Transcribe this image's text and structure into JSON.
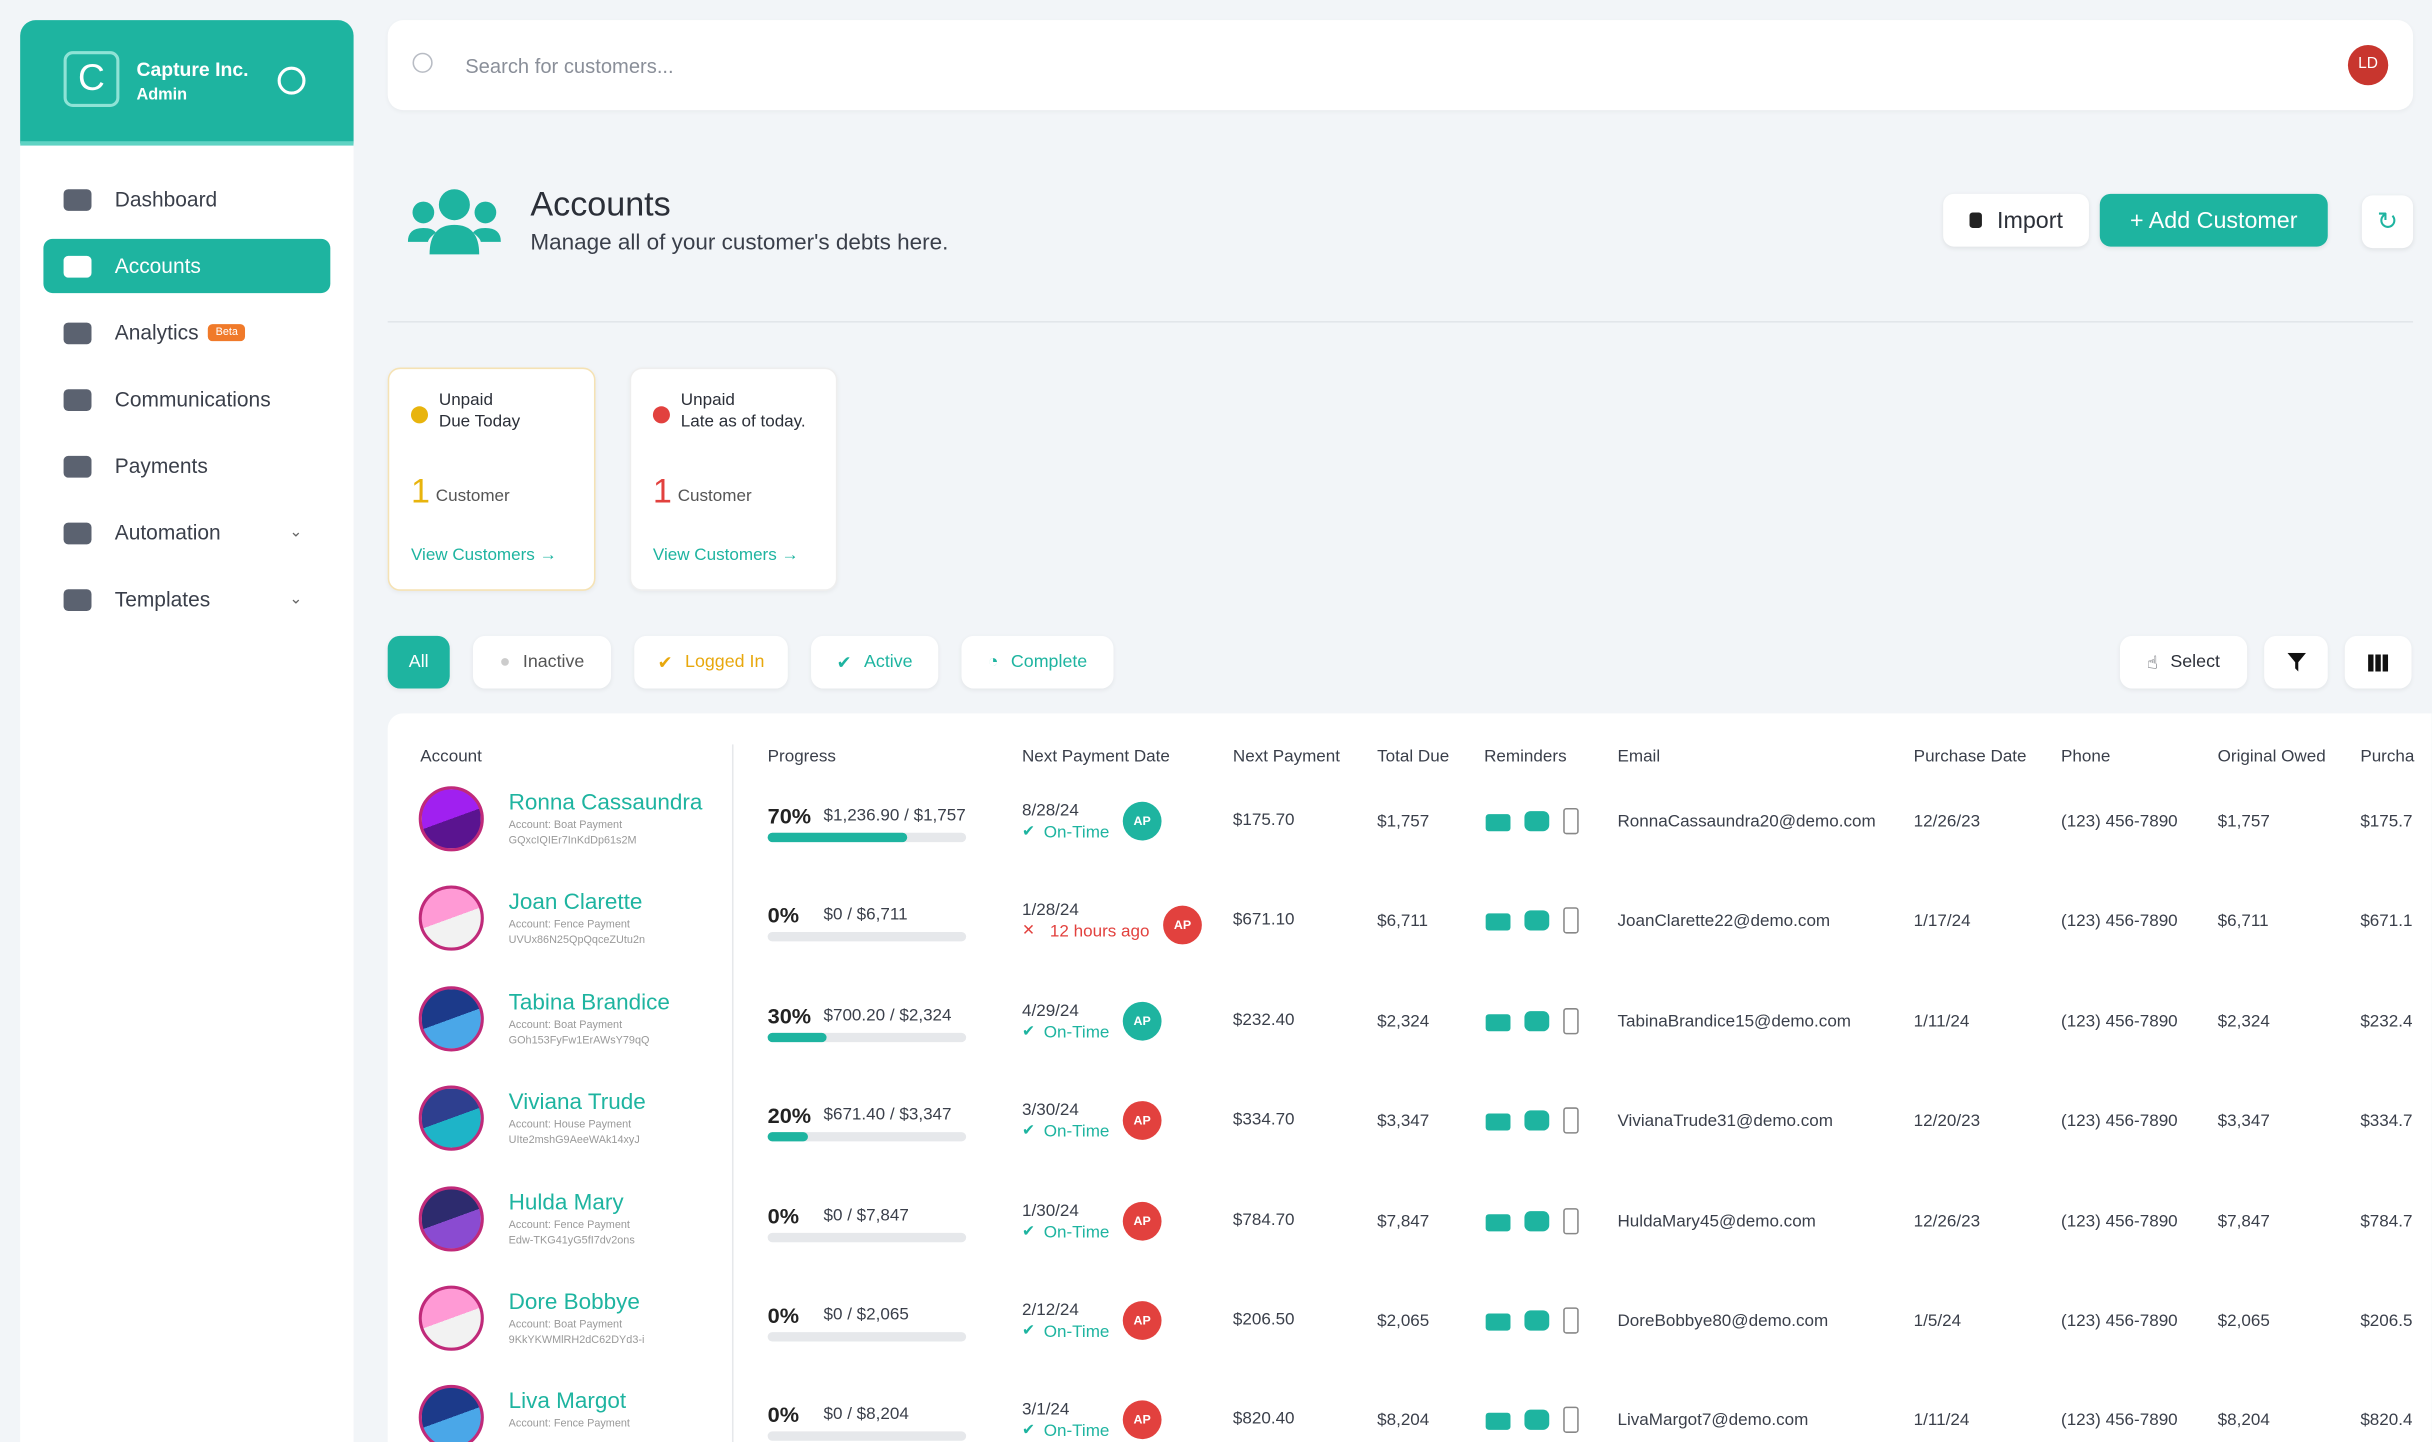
{
  "sidebar": {
    "brand": "Capture Inc.",
    "role": "Admin",
    "nav": [
      "Dashboard",
      "Accounts",
      "Analytics",
      "Communications",
      "Payments",
      "Automation",
      "Templates"
    ],
    "beta": "Beta"
  },
  "search": {
    "placeholder": "Search for customers...",
    "avatar": "LD"
  },
  "header": {
    "title": "Accounts",
    "subtitle": "Manage all of your customer's debts here.",
    "import": "Import",
    "add": "+ Add Customer"
  },
  "cards": [
    {
      "status": "Unpaid",
      "detail": "Due Today",
      "count": 1,
      "unit": "Customer",
      "link": "View Customers →"
    },
    {
      "status": "Unpaid",
      "detail": "Late as of today.",
      "count": 1,
      "unit": "Customer",
      "link": "View Customers →"
    }
  ],
  "filters": [
    "All",
    "Inactive",
    "Logged In",
    "Active",
    "Complete"
  ],
  "tools": {
    "select": "Select"
  },
  "table": {
    "columns": [
      "Account",
      "Progress",
      "Next Payment Date",
      "Next Payment",
      "Total Due",
      "Reminders",
      "Email",
      "Purchase Date",
      "Phone",
      "Original Owed",
      "Purcha"
    ],
    "rows": [
      {
        "name": "Ronna Cassaundra",
        "account": "Account: Boat Payment",
        "id": "GQxcIQIEr7InKdDp61s2M",
        "progress": {
          "value": 70,
          "label": "70%"
        },
        "paid": "$1,236.90 / $1,757",
        "next_date": "8/28/24",
        "status": "On-Time",
        "late": false,
        "agent": "AP",
        "agent_color": "#1eb4a0",
        "next_payment": "$175.70",
        "total_due": "$1,757",
        "email": "RonnaCassaundra20@demo.com",
        "purchase_date": "12/26/23",
        "phone": "(123) 456-7890",
        "original_owed": "$1,757",
        "purchase": "$175.7"
      },
      {
        "name": "Joan Clarette",
        "account": "Account: Fence Payment",
        "id": "UVUx86N25QpQqceZUtu2n",
        "progress": {
          "value": 0,
          "label": "0%"
        },
        "paid": "$0 / $6,711",
        "next_date": "1/28/24",
        "status": "12 hours ago",
        "late": true,
        "agent": "AP",
        "agent_color": "#e2413e",
        "next_payment": "$671.10",
        "total_due": "$6,711",
        "email": "JoanClarette22@demo.com",
        "purchase_date": "1/17/24",
        "phone": "(123) 456-7890",
        "original_owed": "$6,711",
        "purchase": "$671.1"
      },
      {
        "name": "Tabina Brandice",
        "account": "Account: Boat Payment",
        "id": "GOh153FyFw1ErAWsY79qQ",
        "progress": {
          "value": 30,
          "label": "30%"
        },
        "paid": "$700.20 / $2,324",
        "next_date": "4/29/24",
        "status": "On-Time",
        "late": false,
        "agent": "AP",
        "agent_color": "#1eb4a0",
        "next_payment": "$232.40",
        "total_due": "$2,324",
        "email": "TabinaBrandice15@demo.com",
        "purchase_date": "1/11/24",
        "phone": "(123) 456-7890",
        "original_owed": "$2,324",
        "purchase": "$232.4"
      },
      {
        "name": "Viviana Trude",
        "account": "Account: House Payment",
        "id": "UIte2mshG9AeeWAk14xyJ",
        "progress": {
          "value": 20,
          "label": "20%"
        },
        "paid": "$671.40 / $3,347",
        "next_date": "3/30/24",
        "status": "On-Time",
        "late": false,
        "agent": "AP",
        "agent_color": "#e2413e",
        "next_payment": "$334.70",
        "total_due": "$3,347",
        "email": "VivianaTrude31@demo.com",
        "purchase_date": "12/20/23",
        "phone": "(123) 456-7890",
        "original_owed": "$3,347",
        "purchase": "$334.7"
      },
      {
        "name": "Hulda Mary",
        "account": "Account: Fence Payment",
        "id": "Edw-TKG41yG5fI7dv2ons",
        "progress": {
          "value": 0,
          "label": "0%"
        },
        "paid": "$0 / $7,847",
        "next_date": "1/30/24",
        "status": "On-Time",
        "late": false,
        "agent": "AP",
        "agent_color": "#e2413e",
        "next_payment": "$784.70",
        "total_due": "$7,847",
        "email": "HuldaMary45@demo.com",
        "purchase_date": "12/26/23",
        "phone": "(123) 456-7890",
        "original_owed": "$7,847",
        "purchase": "$784.7"
      },
      {
        "name": "Dore Bobbye",
        "account": "Account: Boat Payment",
        "id": "9KkYKWMlRH2dC62DYd3-i",
        "progress": {
          "value": 0,
          "label": "0%"
        },
        "paid": "$0 / $2,065",
        "next_date": "2/12/24",
        "status": "On-Time",
        "late": false,
        "agent": "AP",
        "agent_color": "#e2413e",
        "next_payment": "$206.50",
        "total_due": "$2,065",
        "email": "DoreBobbye80@demo.com",
        "purchase_date": "1/5/24",
        "phone": "(123) 456-7890",
        "original_owed": "$2,065",
        "purchase": "$206.5"
      },
      {
        "name": "Liva Margot",
        "account": "Account: Fence Payment",
        "id": "",
        "progress": {
          "value": 0,
          "label": "0%"
        },
        "paid": "$0 / $8,204",
        "next_date": "3/1/24",
        "status": "On-Time",
        "late": false,
        "agent": "AP",
        "agent_color": "#e2413e",
        "next_payment": "$820.40",
        "total_due": "$8,204",
        "email": "LivaMargot7@demo.com",
        "purchase_date": "1/11/24",
        "phone": "(123) 456-7890",
        "original_owed": "$8,204",
        "purchase": "$820.4"
      }
    ]
  }
}
